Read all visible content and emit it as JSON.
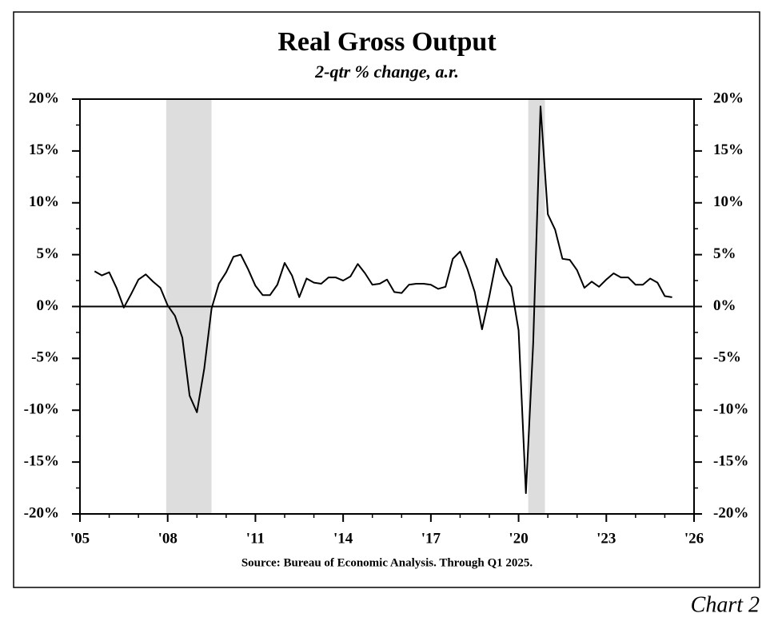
{
  "chart_data": {
    "type": "line",
    "title": "Real Gross Output",
    "subtitle": "2-qtr % change, a.r.",
    "source": "Source:  Bureau of Economic Analysis. Through Q1 2025.",
    "annotation": "Chart 2",
    "x": [
      2005.5,
      2005.75,
      2006,
      2006.25,
      2006.5,
      2006.75,
      2007,
      2007.25,
      2007.5,
      2007.75,
      2008,
      2008.25,
      2008.5,
      2008.75,
      2009,
      2009.25,
      2009.5,
      2009.75,
      2010,
      2010.25,
      2010.5,
      2010.75,
      2011,
      2011.25,
      2011.5,
      2011.75,
      2012,
      2012.25,
      2012.5,
      2012.75,
      2013,
      2013.25,
      2013.5,
      2013.75,
      2014,
      2014.25,
      2014.5,
      2014.75,
      2015,
      2015.25,
      2015.5,
      2015.75,
      2016,
      2016.25,
      2016.5,
      2016.75,
      2017,
      2017.25,
      2017.5,
      2017.75,
      2018,
      2018.25,
      2018.5,
      2018.75,
      2019,
      2019.25,
      2019.5,
      2019.75,
      2020,
      2020.25,
      2020.5,
      2020.75,
      2021,
      2021.25,
      2021.5,
      2021.75,
      2022,
      2022.25,
      2022.5,
      2022.75,
      2023,
      2023.25,
      2023.5,
      2023.75,
      2024,
      2024.25,
      2024.5,
      2024.75,
      2025,
      2025.25
    ],
    "series": [
      {
        "color": "#000000",
        "values": [
          3.4,
          3.0,
          3.3,
          1.8,
          -0.1,
          1.2,
          2.6,
          3.1,
          2.4,
          1.8,
          0.1,
          -0.9,
          -3.0,
          -8.6,
          -10.2,
          -6.0,
          -0.2,
          2.2,
          3.3,
          4.8,
          5.0,
          3.6,
          2.0,
          1.1,
          1.1,
          2.1,
          4.2,
          3.0,
          0.9,
          2.7,
          2.3,
          2.2,
          2.8,
          2.8,
          2.5,
          2.9,
          4.1,
          3.2,
          2.1,
          2.2,
          2.6,
          1.4,
          1.3,
          2.1,
          2.2,
          2.2,
          2.1,
          1.7,
          1.9,
          4.6,
          5.3,
          3.6,
          1.4,
          -2.2,
          1.0,
          4.6,
          3.0,
          1.9,
          -2.3,
          -18.0,
          -3.5,
          19.3,
          8.9,
          7.4,
          4.6,
          4.5,
          3.5,
          1.8,
          2.4,
          1.9,
          2.6,
          3.2,
          2.8,
          2.8,
          2.1,
          2.1,
          2.7,
          2.3,
          1.0,
          0.9
        ]
      }
    ],
    "shaded_periods": [
      [
        2007.95,
        2009.5
      ],
      [
        2020.33,
        2020.9
      ]
    ],
    "shade_color": "#dddddd",
    "xlim": [
      2005,
      2026
    ],
    "xticks": [
      {
        "value": 2005,
        "label": "'05"
      },
      {
        "value": 2008,
        "label": "'08"
      },
      {
        "value": 2011,
        "label": "'11"
      },
      {
        "value": 2014,
        "label": "'14"
      },
      {
        "value": 2017,
        "label": "'17"
      },
      {
        "value": 2020,
        "label": "'20"
      },
      {
        "value": 2023,
        "label": "'23"
      },
      {
        "value": 2026,
        "label": "'26"
      }
    ],
    "ylim": [
      -20,
      20
    ],
    "yticks": [
      {
        "value": -20,
        "label": "-20%"
      },
      {
        "value": -15,
        "label": "-15%"
      },
      {
        "value": -10,
        "label": "-10%"
      },
      {
        "value": -5,
        "label": "-5%"
      },
      {
        "value": 0,
        "label": "0%"
      },
      {
        "value": 5,
        "label": "5%"
      },
      {
        "value": 10,
        "label": "10%"
      },
      {
        "value": 15,
        "label": "15%"
      },
      {
        "value": 20,
        "label": "20%"
      }
    ]
  }
}
